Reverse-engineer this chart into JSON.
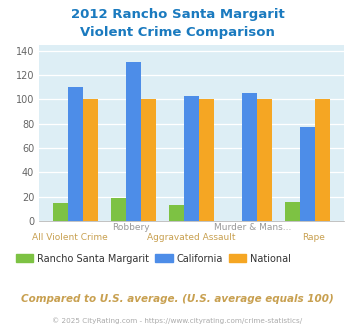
{
  "title_line1": "2012 Rancho Santa Margarit",
  "title_line2": "Violent Crime Comparison",
  "categories": [
    "All Violent Crime",
    "Robbery",
    "Aggravated Assault",
    "Murder & Mans...",
    "Rape"
  ],
  "cat_labels_row1": [
    "",
    "Robbery",
    "",
    "Murder & Mans...",
    ""
  ],
  "cat_labels_row2": [
    "All Violent Crime",
    "",
    "Aggravated Assault",
    "",
    "Rape"
  ],
  "rancho_values": [
    15,
    19,
    13,
    0,
    16
  ],
  "california_values": [
    110,
    131,
    103,
    105,
    77
  ],
  "national_values": [
    100,
    100,
    100,
    100,
    100
  ],
  "colors_rancho": "#7dc243",
  "colors_california": "#4d8de8",
  "colors_national": "#f5a623",
  "ylim": [
    0,
    145
  ],
  "yticks": [
    0,
    20,
    40,
    60,
    80,
    100,
    120,
    140
  ],
  "title_color": "#1a7abf",
  "label_color_row1": "#999999",
  "label_color_row2": "#c8a050",
  "bg_color": "#ddeef5",
  "footer_text1": "Compared to U.S. average. (U.S. average equals 100)",
  "footer_text2": "© 2025 CityRating.com - https://www.cityrating.com/crime-statistics/",
  "legend_labels": [
    "Rancho Santa Margarit",
    "California",
    "National"
  ],
  "legend_text_color": "#333333"
}
